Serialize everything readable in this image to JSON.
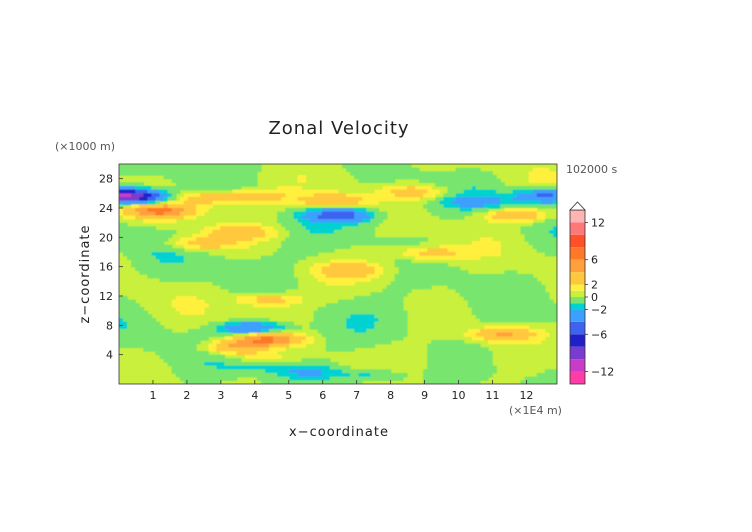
{
  "chart_data": {
    "type": "heatmap",
    "title": "Zonal Velocity",
    "xlabel": "x−coordinate",
    "ylabel": "z−coordinate",
    "x_unit": "(×1E4 m)",
    "y_unit": "(×1000 m)",
    "time_label": "102000 s",
    "xlim": [
      0,
      12.9
    ],
    "ylim": [
      0,
      30
    ],
    "x_ticks": [
      "1",
      "2",
      "3",
      "4",
      "5",
      "6",
      "7",
      "8",
      "9",
      "10",
      "11",
      "12"
    ],
    "y_ticks": [
      "4",
      "8",
      "12",
      "16",
      "20",
      "24",
      "28"
    ],
    "colorbar": {
      "levels": [
        -14,
        -12,
        -10,
        -8,
        -6,
        -4,
        -2,
        -1,
        0,
        1,
        2,
        4,
        6,
        8,
        10,
        12,
        14
      ],
      "labels": [
        "12",
        "6",
        "2",
        "0",
        "−2",
        "−6",
        "−12"
      ],
      "colors": [
        "#ff3ca8",
        "#c83cc8",
        "#7a3cd0",
        "#2020c8",
        "#3c64f0",
        "#3ca0ff",
        "#00d2d2",
        "#78e66e",
        "#c8f03c",
        "#fff03c",
        "#ffc83c",
        "#ffa03c",
        "#ff7828",
        "#ff5028",
        "#ff7878",
        "#ffb4b4"
      ],
      "extend": "max"
    },
    "features": [
      {
        "x": 0.0,
        "z": 25.8,
        "value": -7
      },
      {
        "x": 0.6,
        "z": 25.4,
        "value": -6
      },
      {
        "x": 1.2,
        "z": 23.6,
        "value": 6
      },
      {
        "x": 2.5,
        "z": 25.3,
        "value": 3
      },
      {
        "x": 4.0,
        "z": 25.6,
        "value": 3
      },
      {
        "x": 6.3,
        "z": 25.0,
        "value": 4
      },
      {
        "x": 6.5,
        "z": 23.0,
        "value": -5
      },
      {
        "x": 8.7,
        "z": 26.2,
        "value": 3
      },
      {
        "x": 10.5,
        "z": 24.8,
        "value": -2
      },
      {
        "x": 12.6,
        "z": 25.6,
        "value": -5
      },
      {
        "x": 11.7,
        "z": 23.0,
        "value": 4
      },
      {
        "x": 2.4,
        "z": 19.2,
        "value": 3
      },
      {
        "x": 3.6,
        "z": 20.6,
        "value": 3
      },
      {
        "x": 9.2,
        "z": 17.8,
        "value": 3
      },
      {
        "x": 6.8,
        "z": 15.5,
        "value": 3
      },
      {
        "x": 4.4,
        "z": 11.5,
        "value": 3
      },
      {
        "x": 3.5,
        "z": 5.0,
        "value": 5
      },
      {
        "x": 4.4,
        "z": 6.0,
        "value": 5
      },
      {
        "x": 3.9,
        "z": 7.6,
        "value": -4
      },
      {
        "x": 11.3,
        "z": 6.8,
        "value": 4
      },
      {
        "x": 5.6,
        "z": 1.6,
        "value": -2
      },
      {
        "x": 7.5,
        "z": 1.2,
        "value": -2
      }
    ]
  }
}
